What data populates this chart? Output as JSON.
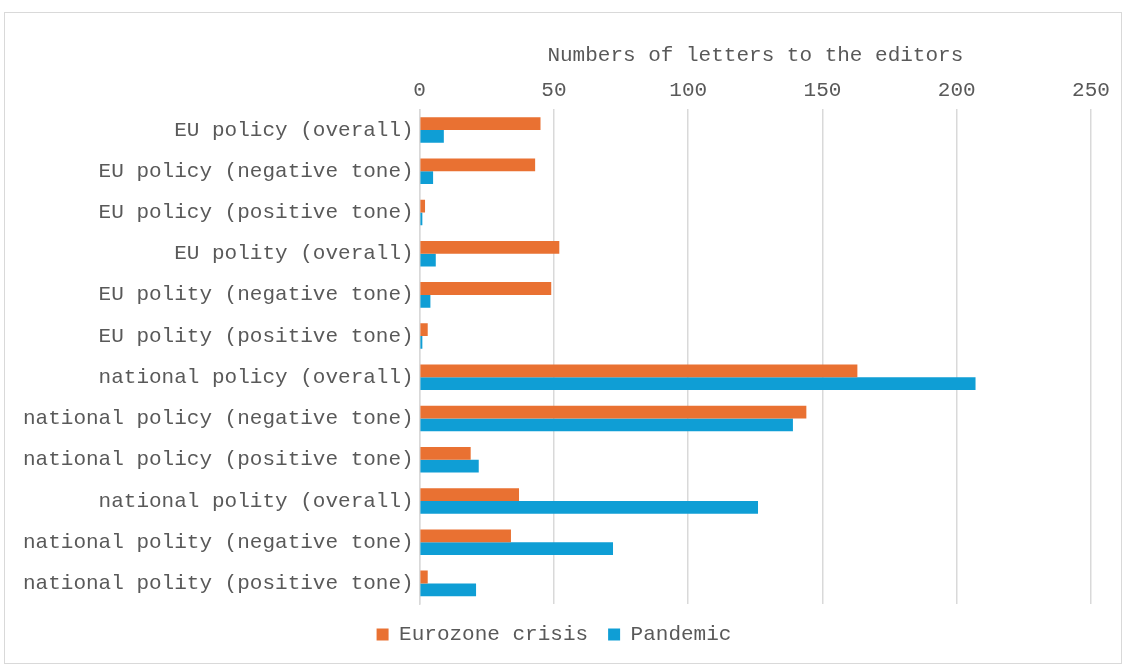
{
  "chart_data": {
    "type": "bar",
    "orientation": "horizontal",
    "xlabel": "Numbers of letters to the editors",
    "categories": [
      "EU policy (overall)",
      "EU policy (negative tone)",
      "EU policy (positive tone)",
      "EU polity (overall)",
      "EU polity (negative tone)",
      "EU polity (positive tone)",
      "national policy (overall)",
      "national policy (negative tone)",
      "national policy (positive tone)",
      "national polity (overall)",
      "national polity (negative tone)",
      "national polity (positive tone)"
    ],
    "series": [
      {
        "name": "Eurozone crisis",
        "color": "#e97132",
        "values": [
          45,
          43,
          2,
          52,
          49,
          3,
          163,
          144,
          19,
          37,
          34,
          3
        ]
      },
      {
        "name": "Pandemic",
        "color": "#0f9ed5",
        "values": [
          9,
          5,
          1,
          6,
          4,
          1,
          207,
          139,
          22,
          126,
          72,
          21
        ]
      }
    ],
    "xlim": [
      0,
      250
    ],
    "xticks": [
      0,
      50,
      100,
      150,
      200,
      250
    ],
    "grid": "x",
    "legend": "bottom"
  }
}
